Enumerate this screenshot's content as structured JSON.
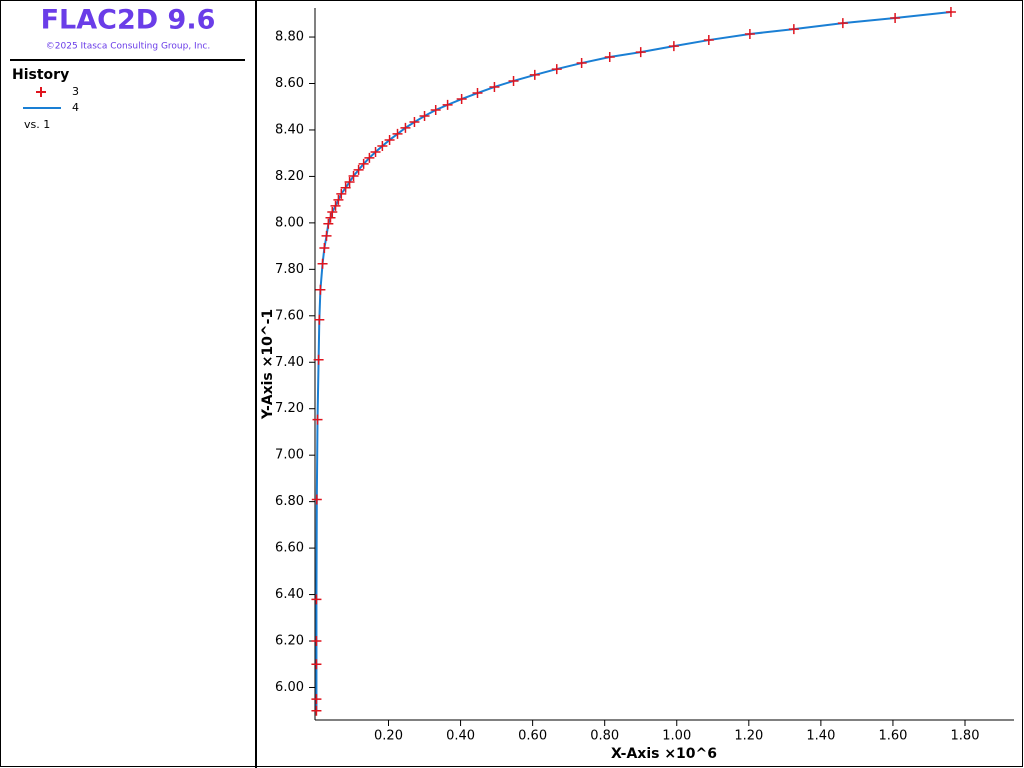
{
  "chart_data": {
    "type": "line",
    "title": "FLAC2D 9.6",
    "subtitle": "©2025 Itasca Consulting Group, Inc.",
    "legend_title": "History",
    "x_series_label": "vs. 1",
    "x_label": "X-Axis ×10^6",
    "y_label": "Y-Axis ×10^-1",
    "xlim": [
      -0.004,
      1.936
    ],
    "ylim": [
      5.86,
      8.925
    ],
    "xticks": [
      {
        "value": 0.2,
        "label": "0.20"
      },
      {
        "value": 0.4,
        "label": "0.40"
      },
      {
        "value": 0.6,
        "label": "0.60"
      },
      {
        "value": 0.8,
        "label": "0.80"
      },
      {
        "value": 1.0,
        "label": "1.00"
      },
      {
        "value": 1.2,
        "label": "1.20"
      },
      {
        "value": 1.4,
        "label": "1.40"
      },
      {
        "value": 1.6,
        "label": "1.60"
      },
      {
        "value": 1.8,
        "label": "1.80"
      }
    ],
    "yticks": [
      {
        "value": 6.0,
        "label": "6.00"
      },
      {
        "value": 6.2,
        "label": "6.20"
      },
      {
        "value": 6.4,
        "label": "6.40"
      },
      {
        "value": 6.6,
        "label": "6.60"
      },
      {
        "value": 6.8,
        "label": "6.80"
      },
      {
        "value": 7.0,
        "label": "7.00"
      },
      {
        "value": 7.2,
        "label": "7.20"
      },
      {
        "value": 7.4,
        "label": "7.40"
      },
      {
        "value": 7.6,
        "label": "7.60"
      },
      {
        "value": 7.8,
        "label": "7.80"
      },
      {
        "value": 8.0,
        "label": "8.00"
      },
      {
        "value": 8.2,
        "label": "8.20"
      },
      {
        "value": 8.4,
        "label": "8.40"
      },
      {
        "value": 8.6,
        "label": "8.60"
      },
      {
        "value": 8.8,
        "label": "8.80"
      }
    ],
    "x": [
      0.0,
      0.0,
      0.0,
      0.0,
      0.0,
      0.001,
      0.003,
      0.006,
      0.008,
      0.011,
      0.017,
      0.022,
      0.028,
      0.033,
      0.039,
      0.044,
      0.053,
      0.061,
      0.069,
      0.081,
      0.092,
      0.103,
      0.117,
      0.131,
      0.147,
      0.164,
      0.183,
      0.203,
      0.225,
      0.247,
      0.272,
      0.3,
      0.331,
      0.364,
      0.403,
      0.447,
      0.494,
      0.547,
      0.606,
      0.667,
      0.736,
      0.814,
      0.9,
      0.992,
      1.089,
      1.203,
      1.325,
      1.461,
      1.606,
      1.761
    ],
    "series": [
      {
        "name": "3",
        "color": "#e0141e",
        "marker": "plus",
        "values": [
          5.9,
          5.95,
          6.1,
          6.2,
          6.379,
          6.809,
          7.153,
          7.411,
          7.583,
          7.712,
          7.824,
          7.892,
          7.944,
          7.996,
          8.022,
          8.047,
          8.073,
          8.099,
          8.125,
          8.151,
          8.176,
          8.202,
          8.228,
          8.254,
          8.28,
          8.305,
          8.331,
          8.357,
          8.383,
          8.409,
          8.434,
          8.46,
          8.486,
          8.508,
          8.533,
          8.559,
          8.585,
          8.611,
          8.637,
          8.662,
          8.688,
          8.714,
          8.735,
          8.761,
          8.787,
          8.813,
          8.834,
          8.86,
          8.882,
          8.908
        ]
      },
      {
        "name": "4",
        "color": "#1a7fd4",
        "values": [
          5.9,
          5.95,
          6.1,
          6.2,
          6.379,
          6.809,
          7.153,
          7.411,
          7.583,
          7.712,
          7.824,
          7.892,
          7.944,
          7.996,
          8.022,
          8.047,
          8.073,
          8.099,
          8.125,
          8.151,
          8.176,
          8.202,
          8.228,
          8.254,
          8.28,
          8.305,
          8.331,
          8.357,
          8.383,
          8.409,
          8.434,
          8.46,
          8.486,
          8.508,
          8.533,
          8.559,
          8.585,
          8.611,
          8.637,
          8.662,
          8.688,
          8.714,
          8.735,
          8.761,
          8.787,
          8.813,
          8.834,
          8.86,
          8.882,
          8.908
        ]
      }
    ]
  }
}
